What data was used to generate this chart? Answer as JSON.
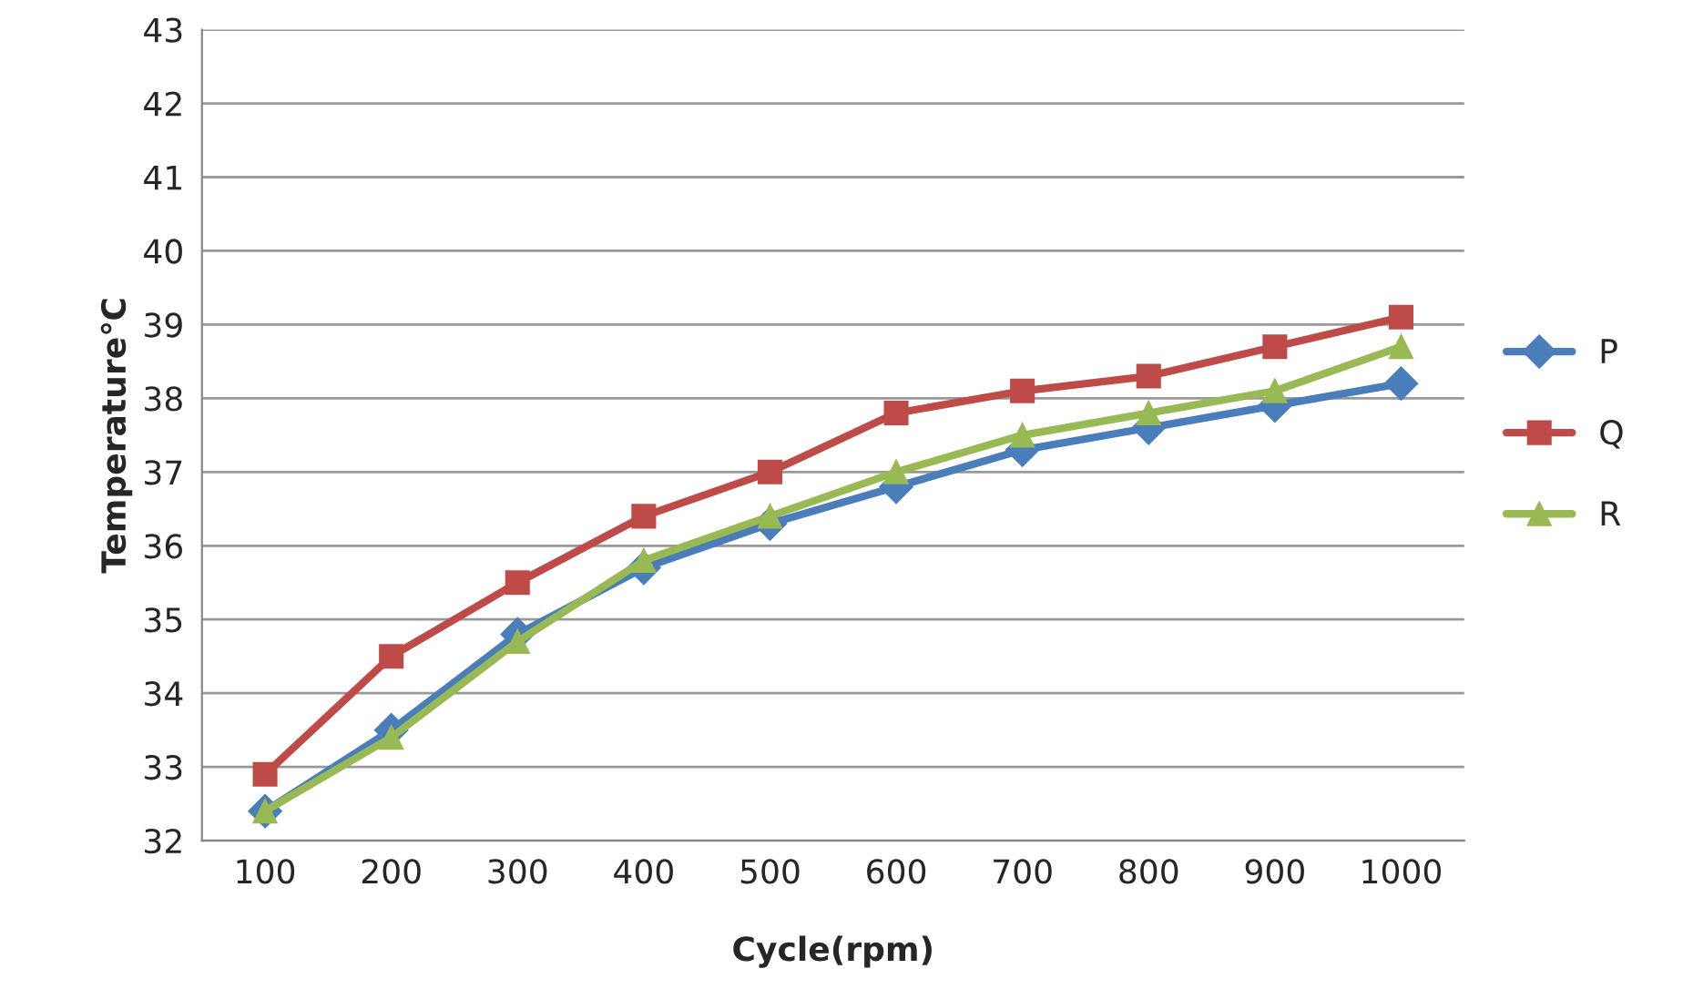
{
  "chart_data": {
    "type": "line",
    "xlabel": "Cycle(rpm)",
    "ylabel": "Temperature℃",
    "categories": [
      "100",
      "200",
      "300",
      "400",
      "500",
      "600",
      "700",
      "800",
      "900",
      "1000"
    ],
    "series": [
      {
        "name": "P",
        "color": "#4a7ebb",
        "marker": "diamond",
        "values": [
          32.4,
          33.5,
          34.8,
          35.7,
          36.3,
          36.8,
          37.3,
          37.6,
          37.9,
          38.2
        ]
      },
      {
        "name": "Q",
        "color": "#be4b48",
        "marker": "square",
        "values": [
          32.9,
          34.5,
          35.5,
          36.4,
          37.0,
          37.8,
          38.1,
          38.3,
          38.7,
          39.1
        ]
      },
      {
        "name": "R",
        "color": "#98b954",
        "marker": "triangle",
        "values": [
          32.4,
          33.4,
          34.7,
          35.8,
          36.4,
          37.0,
          37.5,
          37.8,
          38.1,
          38.7
        ]
      }
    ],
    "ylim": [
      32,
      43
    ],
    "yticks": [
      32,
      33,
      34,
      35,
      36,
      37,
      38,
      39,
      40,
      41,
      42,
      43
    ],
    "grid": "y",
    "legend": "right",
    "line_style": "solid"
  }
}
